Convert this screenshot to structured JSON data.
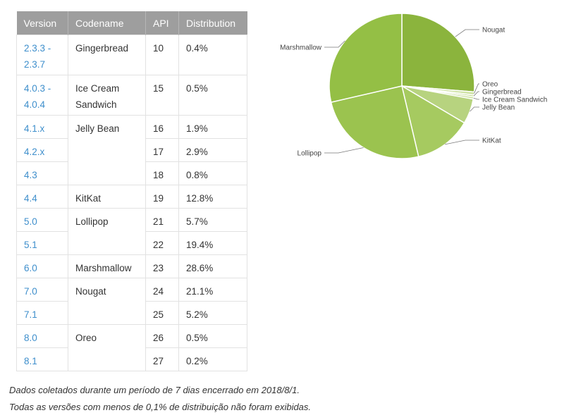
{
  "table": {
    "headers": [
      "Version",
      "Codename",
      "API",
      "Distribution"
    ],
    "rows": [
      {
        "version": "2.3.3 - 2.3.7",
        "codename": "Gingerbread",
        "api": "10",
        "distribution": "0.4%",
        "codename_rowspan": 1
      },
      {
        "version": "4.0.3 - 4.0.4",
        "codename": "Ice Cream Sandwich",
        "api": "15",
        "distribution": "0.5%",
        "codename_rowspan": 1
      },
      {
        "version": "4.1.x",
        "codename": "Jelly Bean",
        "api": "16",
        "distribution": "1.9%",
        "codename_rowspan": 3
      },
      {
        "version": "4.2.x",
        "codename": "",
        "api": "17",
        "distribution": "2.9%",
        "codename_rowspan": 0
      },
      {
        "version": "4.3",
        "codename": "",
        "api": "18",
        "distribution": "0.8%",
        "codename_rowspan": 0
      },
      {
        "version": "4.4",
        "codename": "KitKat",
        "api": "19",
        "distribution": "12.8%",
        "codename_rowspan": 1
      },
      {
        "version": "5.0",
        "codename": "Lollipop",
        "api": "21",
        "distribution": "5.7%",
        "codename_rowspan": 2
      },
      {
        "version": "5.1",
        "codename": "",
        "api": "22",
        "distribution": "19.4%",
        "codename_rowspan": 0
      },
      {
        "version": "6.0",
        "codename": "Marshmallow",
        "api": "23",
        "distribution": "28.6%",
        "codename_rowspan": 1
      },
      {
        "version": "7.0",
        "codename": "Nougat",
        "api": "24",
        "distribution": "21.1%",
        "codename_rowspan": 2
      },
      {
        "version": "7.1",
        "codename": "",
        "api": "25",
        "distribution": "5.2%",
        "codename_rowspan": 0
      },
      {
        "version": "8.0",
        "codename": "Oreo",
        "api": "26",
        "distribution": "0.5%",
        "codename_rowspan": 2
      },
      {
        "version": "8.1",
        "codename": "",
        "api": "27",
        "distribution": "0.2%",
        "codename_rowspan": 0
      }
    ]
  },
  "notes": [
    "Dados coletados durante um período de 7 dias encerrado em 2018/8/1.",
    "Todas as versões com menos de 0,1% de distribuição não foram exibidas."
  ],
  "chart_data": {
    "type": "pie",
    "title": "",
    "start_angle_deg": 90,
    "direction": "clockwise",
    "slices": [
      {
        "label": "Nougat",
        "value": 26.3,
        "color": "#8bb43d"
      },
      {
        "label": "Oreo",
        "value": 0.7,
        "color": "#cfe3a4"
      },
      {
        "label": "Gingerbread",
        "value": 0.4,
        "color": "#bcd884"
      },
      {
        "label": "Ice Cream Sandwich",
        "value": 0.5,
        "color": "#c8df98"
      },
      {
        "label": "Jelly Bean",
        "value": 5.6,
        "color": "#b7d37f"
      },
      {
        "label": "KitKat",
        "value": 12.8,
        "color": "#a6ca60"
      },
      {
        "label": "Lollipop",
        "value": 25.1,
        "color": "#9bc34f"
      },
      {
        "label": "Marshmallow",
        "value": 28.6,
        "color": "#94bf45"
      }
    ]
  }
}
